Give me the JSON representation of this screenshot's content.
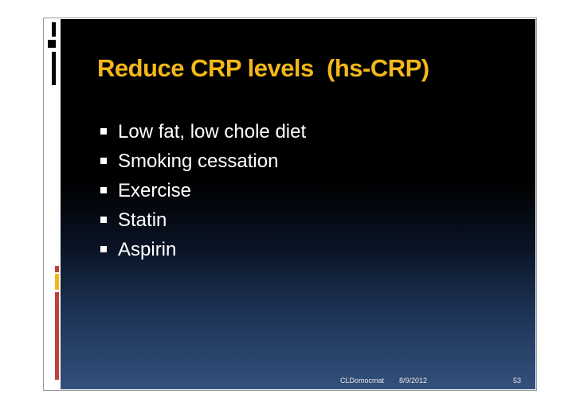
{
  "slide": {
    "title": "Reduce CRP levels  (hs-CRP)",
    "bullets": [
      "Low fat, low chole diet",
      "Smoking cessation",
      "Exercise",
      "Statin",
      "Aspirin"
    ],
    "footer": {
      "author": "CLDomocmat",
      "date": "8/9/2012",
      "page": "53"
    }
  },
  "colors": {
    "title": "#f2b71a",
    "background_top": "#000000",
    "background_bottom": "#34517c",
    "accent_red": "#c0413a",
    "accent_yellow": "#f2b71a"
  }
}
